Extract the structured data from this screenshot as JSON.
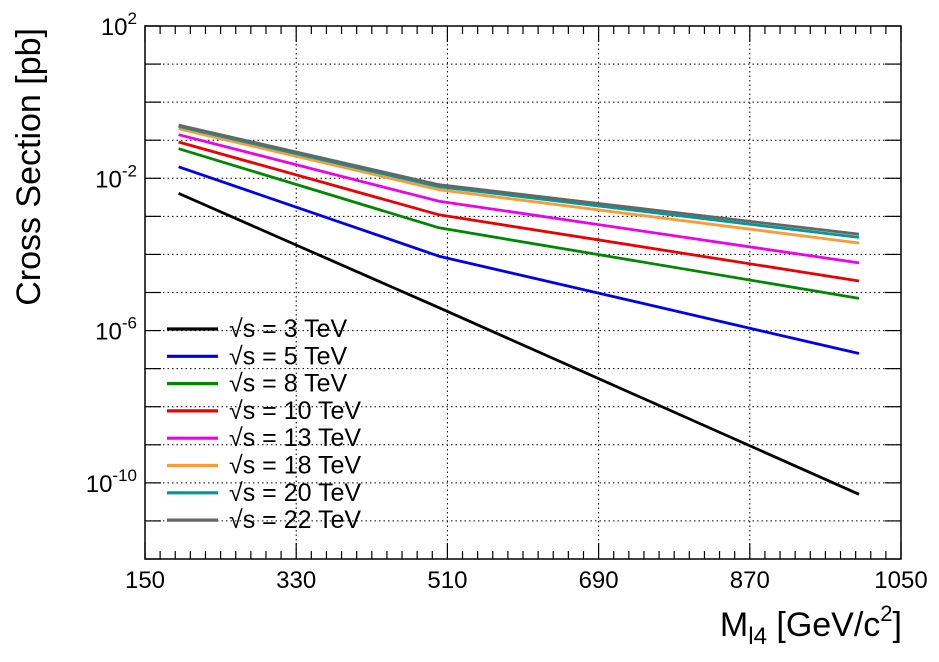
{
  "chart_data": {
    "type": "line",
    "title": "",
    "xlabel": "M",
    "xlabel_subscript": "l4",
    "xlabel_units_prefix": " [GeV/c",
    "xlabel_units_sup": "2",
    "xlabel_units_suffix": "]",
    "ylabel": "Cross Section [pb]",
    "x_scale": "linear",
    "y_scale": "log",
    "xlim": [
      150,
      1050
    ],
    "ylim": [
      1e-12,
      100
    ],
    "grid": true,
    "legend_position": "bottom-left",
    "x_tick_values": [
      150,
      330,
      510,
      690,
      870,
      1050
    ],
    "x_tick_labels": [
      "150",
      "330",
      "510",
      "690",
      "870",
      "1050"
    ],
    "y_ticks": [
      {
        "value": 100,
        "base": "10",
        "exp": "2"
      },
      {
        "value": 0.01,
        "base": "10",
        "exp": "-2"
      },
      {
        "value": 1e-06,
        "base": "10",
        "exp": "-6"
      },
      {
        "value": 1e-10,
        "base": "10",
        "exp": "-10"
      }
    ],
    "x": [
      190,
      500,
      1000
    ],
    "series": [
      {
        "name": "√s = 3 TeV",
        "color": "#000000",
        "values": [
          0.004,
          4e-06,
          5e-11
        ]
      },
      {
        "name": "√s = 5 TeV",
        "color": "#0000ee",
        "values": [
          0.02,
          9e-05,
          2.5e-07
        ]
      },
      {
        "name": "√s = 8 TeV",
        "color": "#008800",
        "values": [
          0.06,
          0.0005,
          7e-06
        ]
      },
      {
        "name": "√s = 10 TeV",
        "color": "#ee0000",
        "values": [
          0.09,
          0.0011,
          2e-05
        ]
      },
      {
        "name": "√s = 13 TeV",
        "color": "#ee00ee",
        "values": [
          0.14,
          0.0025,
          6e-05
        ]
      },
      {
        "name": "√s = 18 TeV",
        "color": "#ff9933",
        "values": [
          0.2,
          0.005,
          0.0002
        ]
      },
      {
        "name": "√s = 20 TeV",
        "color": "#009999",
        "values": [
          0.23,
          0.006,
          0.00028
        ]
      },
      {
        "name": "√s = 22 TeV",
        "color": "#666666",
        "values": [
          0.25,
          0.0068,
          0.00034
        ]
      }
    ]
  }
}
